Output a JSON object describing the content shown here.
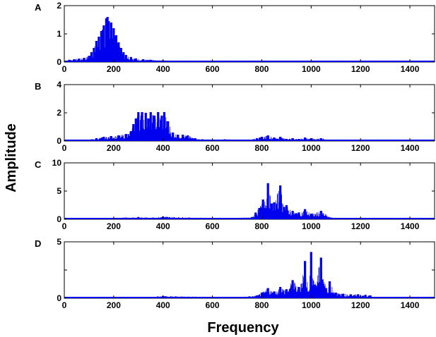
{
  "figure": {
    "xlabel": "Frequency",
    "ylabel": "Amplitude"
  },
  "colors": {
    "series": "#0000ee",
    "axes": "#000000"
  },
  "chart_data": [
    {
      "type": "bar",
      "panel": "A",
      "xlim": [
        0,
        1500
      ],
      "ylim": [
        0,
        2
      ],
      "xticks": [
        "0",
        "200",
        "400",
        "600",
        "800",
        "1000",
        "1200",
        "1400"
      ],
      "yticks": [
        "0",
        "1",
        "2"
      ],
      "peaks": [
        {
          "x": 20,
          "y": 0.08
        },
        {
          "x": 40,
          "y": 0.1
        },
        {
          "x": 60,
          "y": 0.12
        },
        {
          "x": 80,
          "y": 0.15
        },
        {
          "x": 100,
          "y": 0.22
        },
        {
          "x": 110,
          "y": 0.35
        },
        {
          "x": 120,
          "y": 0.5
        },
        {
          "x": 130,
          "y": 0.75
        },
        {
          "x": 140,
          "y": 0.9
        },
        {
          "x": 150,
          "y": 1.1
        },
        {
          "x": 160,
          "y": 1.3
        },
        {
          "x": 170,
          "y": 1.55
        },
        {
          "x": 175,
          "y": 1.6
        },
        {
          "x": 180,
          "y": 1.45
        },
        {
          "x": 190,
          "y": 1.4
        },
        {
          "x": 200,
          "y": 1.2
        },
        {
          "x": 210,
          "y": 0.95
        },
        {
          "x": 220,
          "y": 0.7
        },
        {
          "x": 230,
          "y": 0.5
        },
        {
          "x": 240,
          "y": 0.35
        },
        {
          "x": 250,
          "y": 0.25
        },
        {
          "x": 270,
          "y": 0.18
        },
        {
          "x": 290,
          "y": 0.13
        },
        {
          "x": 320,
          "y": 0.1
        },
        {
          "x": 350,
          "y": 0.08
        },
        {
          "x": 400,
          "y": 0.06
        },
        {
          "x": 450,
          "y": 0.05
        },
        {
          "x": 500,
          "y": 0.05
        },
        {
          "x": 550,
          "y": 0.04
        },
        {
          "x": 600,
          "y": 0.04
        },
        {
          "x": 650,
          "y": 0.03
        },
        {
          "x": 700,
          "y": 0.03
        }
      ]
    },
    {
      "type": "bar",
      "panel": "B",
      "xlim": [
        0,
        1500
      ],
      "ylim": [
        0,
        4
      ],
      "xticks": [
        "0",
        "200",
        "400",
        "600",
        "800",
        "1000",
        "1200",
        "1400"
      ],
      "yticks": [
        "0",
        "2",
        "4"
      ],
      "peaks": [
        {
          "x": 100,
          "y": 0.1
        },
        {
          "x": 130,
          "y": 0.2
        },
        {
          "x": 160,
          "y": 0.3
        },
        {
          "x": 190,
          "y": 0.35
        },
        {
          "x": 220,
          "y": 0.4
        },
        {
          "x": 250,
          "y": 0.5
        },
        {
          "x": 270,
          "y": 0.7
        },
        {
          "x": 280,
          "y": 1.2
        },
        {
          "x": 290,
          "y": 1.6
        },
        {
          "x": 300,
          "y": 2.05
        },
        {
          "x": 315,
          "y": 2.05
        },
        {
          "x": 330,
          "y": 2.0
        },
        {
          "x": 340,
          "y": 1.6
        },
        {
          "x": 350,
          "y": 2.05
        },
        {
          "x": 365,
          "y": 1.8
        },
        {
          "x": 380,
          "y": 2.05
        },
        {
          "x": 395,
          "y": 1.8
        },
        {
          "x": 405,
          "y": 2.05
        },
        {
          "x": 420,
          "y": 1.4
        },
        {
          "x": 440,
          "y": 0.6
        },
        {
          "x": 460,
          "y": 0.45
        },
        {
          "x": 480,
          "y": 0.45
        },
        {
          "x": 500,
          "y": 0.4
        },
        {
          "x": 530,
          "y": 0.2
        },
        {
          "x": 560,
          "y": 0.12
        },
        {
          "x": 600,
          "y": 0.1
        },
        {
          "x": 650,
          "y": 0.12
        },
        {
          "x": 700,
          "y": 0.1
        },
        {
          "x": 750,
          "y": 0.1
        },
        {
          "x": 780,
          "y": 0.2
        },
        {
          "x": 800,
          "y": 0.3
        },
        {
          "x": 825,
          "y": 0.4
        },
        {
          "x": 850,
          "y": 0.25
        },
        {
          "x": 875,
          "y": 0.3
        },
        {
          "x": 900,
          "y": 0.15
        },
        {
          "x": 925,
          "y": 0.2
        },
        {
          "x": 950,
          "y": 0.15
        },
        {
          "x": 975,
          "y": 0.25
        },
        {
          "x": 1000,
          "y": 0.2
        },
        {
          "x": 1040,
          "y": 0.2
        },
        {
          "x": 1100,
          "y": 0.06
        }
      ]
    },
    {
      "type": "bar",
      "panel": "C",
      "xlim": [
        0,
        1500
      ],
      "ylim": [
        0,
        10
      ],
      "xticks": [
        "0",
        "200",
        "400",
        "600",
        "800",
        "1000",
        "1200",
        "1400"
      ],
      "yticks": [
        "0",
        "5",
        "10"
      ],
      "peaks": [
        {
          "x": 150,
          "y": 0.2
        },
        {
          "x": 300,
          "y": 0.4
        },
        {
          "x": 330,
          "y": 0.3
        },
        {
          "x": 360,
          "y": 0.3
        },
        {
          "x": 400,
          "y": 0.5
        },
        {
          "x": 620,
          "y": 0.2
        },
        {
          "x": 650,
          "y": 0.2
        },
        {
          "x": 680,
          "y": 0.2
        },
        {
          "x": 760,
          "y": 0.4
        },
        {
          "x": 775,
          "y": 1.2
        },
        {
          "x": 790,
          "y": 2.0
        },
        {
          "x": 805,
          "y": 3.5
        },
        {
          "x": 825,
          "y": 6.4
        },
        {
          "x": 840,
          "y": 2.8
        },
        {
          "x": 850,
          "y": 3.0
        },
        {
          "x": 875,
          "y": 6.0
        },
        {
          "x": 890,
          "y": 2.2
        },
        {
          "x": 900,
          "y": 2.5
        },
        {
          "x": 925,
          "y": 1.5
        },
        {
          "x": 950,
          "y": 1.2
        },
        {
          "x": 975,
          "y": 1.8
        },
        {
          "x": 1000,
          "y": 1.0
        },
        {
          "x": 1040,
          "y": 1.5
        },
        {
          "x": 1080,
          "y": 0.3
        },
        {
          "x": 1120,
          "y": 0.2
        }
      ]
    },
    {
      "type": "bar",
      "panel": "D",
      "xlim": [
        0,
        1500
      ],
      "ylim": [
        0,
        5
      ],
      "xticks": [
        "0",
        "200",
        "400",
        "600",
        "800",
        "1000",
        "1200",
        "1400"
      ],
      "yticks": [
        "0",
        "",
        "5"
      ],
      "peaks": [
        {
          "x": 150,
          "y": 0.1
        },
        {
          "x": 250,
          "y": 0.1
        },
        {
          "x": 300,
          "y": 0.1
        },
        {
          "x": 400,
          "y": 0.2
        },
        {
          "x": 700,
          "y": 0.1
        },
        {
          "x": 780,
          "y": 0.25
        },
        {
          "x": 800,
          "y": 0.5
        },
        {
          "x": 825,
          "y": 0.9
        },
        {
          "x": 850,
          "y": 0.6
        },
        {
          "x": 875,
          "y": 1.0
        },
        {
          "x": 900,
          "y": 0.8
        },
        {
          "x": 925,
          "y": 1.6
        },
        {
          "x": 950,
          "y": 1.0
        },
        {
          "x": 975,
          "y": 3.3
        },
        {
          "x": 990,
          "y": 0.6
        },
        {
          "x": 1000,
          "y": 4.1
        },
        {
          "x": 1015,
          "y": 1.2
        },
        {
          "x": 1040,
          "y": 3.6
        },
        {
          "x": 1060,
          "y": 0.9
        },
        {
          "x": 1075,
          "y": 1.5
        },
        {
          "x": 1100,
          "y": 0.5
        },
        {
          "x": 1130,
          "y": 0.4
        },
        {
          "x": 1160,
          "y": 0.35
        },
        {
          "x": 1190,
          "y": 0.35
        },
        {
          "x": 1220,
          "y": 0.3
        },
        {
          "x": 1240,
          "y": 0.25
        }
      ]
    }
  ]
}
